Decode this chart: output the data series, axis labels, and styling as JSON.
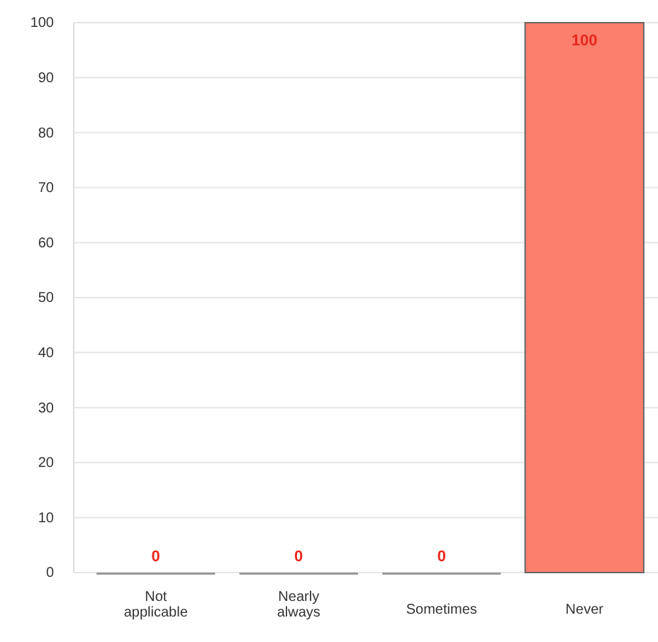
{
  "chart_data": {
    "type": "bar",
    "categories": [
      "Not applicable",
      "Nearly always",
      "Sometimes",
      "Never"
    ],
    "values": [
      0,
      0,
      0,
      100
    ],
    "color": "#fc7f6e",
    "ylim": [
      0,
      100
    ],
    "yticks": [
      0,
      10,
      20,
      30,
      40,
      50,
      60,
      70,
      80,
      90,
      100
    ],
    "grid": "y",
    "data_labels": true
  }
}
